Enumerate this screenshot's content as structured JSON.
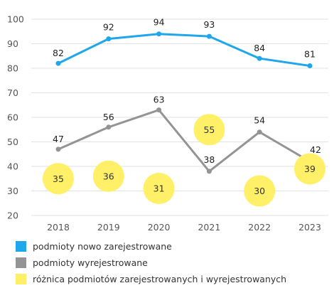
{
  "chart_data": {
    "type": "line",
    "title": "",
    "xlabel": "",
    "ylabel": "",
    "categories": [
      "2018",
      "2019",
      "2020",
      "2021",
      "2022",
      "2023"
    ],
    "ylim": [
      20,
      100
    ],
    "yticks": [
      20,
      30,
      40,
      50,
      60,
      70,
      80,
      90,
      100
    ],
    "grid": true,
    "legend_position": "bottom-left",
    "series": [
      {
        "name": "podmioty nowo zarejestrowane",
        "type": "line",
        "color": "#1ea7ea",
        "values": [
          82,
          92,
          94,
          93,
          84,
          81
        ]
      },
      {
        "name": "podmioty wyrejestrowane",
        "type": "line",
        "color": "#949494",
        "values": [
          47,
          56,
          63,
          38,
          54,
          42
        ]
      },
      {
        "name": "różnica podmiotów zarejestrowanych i wyrejestrowanych",
        "type": "bubble",
        "color": "#fff068",
        "values": [
          35,
          36,
          31,
          55,
          30,
          39
        ]
      }
    ]
  }
}
